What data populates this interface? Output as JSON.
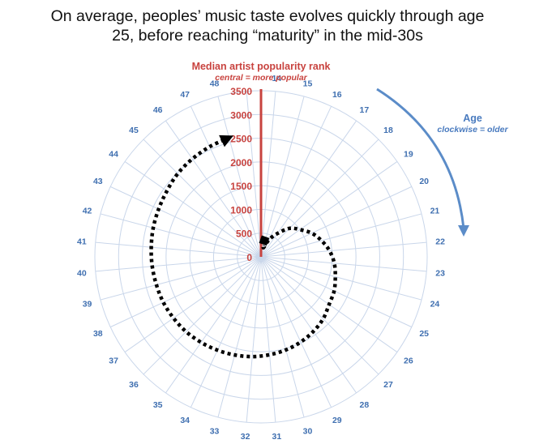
{
  "chart_data": {
    "type": "radar-line",
    "title_lines": [
      "On average, peoples’ music taste evolves quickly through age",
      "25, before reaching “maturity” in the mid-30s"
    ],
    "radial_axis": {
      "label": "Median artist popularity rank",
      "sublabel": "central = more popular",
      "ticks": [
        0,
        500,
        1000,
        1500,
        2000,
        2500,
        3000,
        3500
      ],
      "range": [
        0,
        3500
      ]
    },
    "angular_axis": {
      "label": "Age",
      "sublabel": "clockwise = older",
      "ages": [
        14,
        15,
        16,
        17,
        18,
        19,
        20,
        21,
        22,
        23,
        24,
        25,
        26,
        27,
        28,
        29,
        30,
        31,
        32,
        33,
        34,
        35,
        36,
        37,
        38,
        39,
        40,
        41,
        42,
        43,
        44,
        45,
        46,
        47,
        48
      ],
      "tick_labels": [
        "14",
        "15",
        "16",
        "17",
        "18",
        "19",
        "20",
        "21",
        "22",
        "23",
        "24",
        "25",
        "26",
        "27",
        "28",
        "29",
        "30",
        "31",
        "32",
        "33",
        "34",
        "35",
        "36",
        "37",
        "38",
        "39",
        "40",
        "41",
        "42",
        "43",
        "44",
        "45",
        "46",
        "47",
        "48"
      ]
    },
    "series": [
      {
        "x": [
          14,
          15,
          16,
          17,
          18,
          19,
          20,
          21,
          22,
          23,
          24,
          25,
          26,
          27,
          28,
          29,
          30,
          31,
          32,
          33,
          34,
          35,
          36,
          37,
          38,
          39,
          40,
          41,
          42,
          43,
          44,
          45,
          46,
          47,
          48
        ],
        "y": [
          0,
          200,
          400,
          600,
          850,
          1000,
          1180,
          1320,
          1450,
          1550,
          1620,
          1700,
          1750,
          1850,
          1920,
          1980,
          2030,
          2070,
          2110,
          2140,
          2170,
          2200,
          2230,
          2250,
          2270,
          2280,
          2300,
          2320,
          2350,
          2380,
          2420,
          2480,
          2520,
          2560,
          2600
        ]
      }
    ],
    "colors": {
      "radial_axis": "#c8433f",
      "grid": "#c9d6ea",
      "angular": "#4a7bbf",
      "line": "#000000"
    }
  }
}
